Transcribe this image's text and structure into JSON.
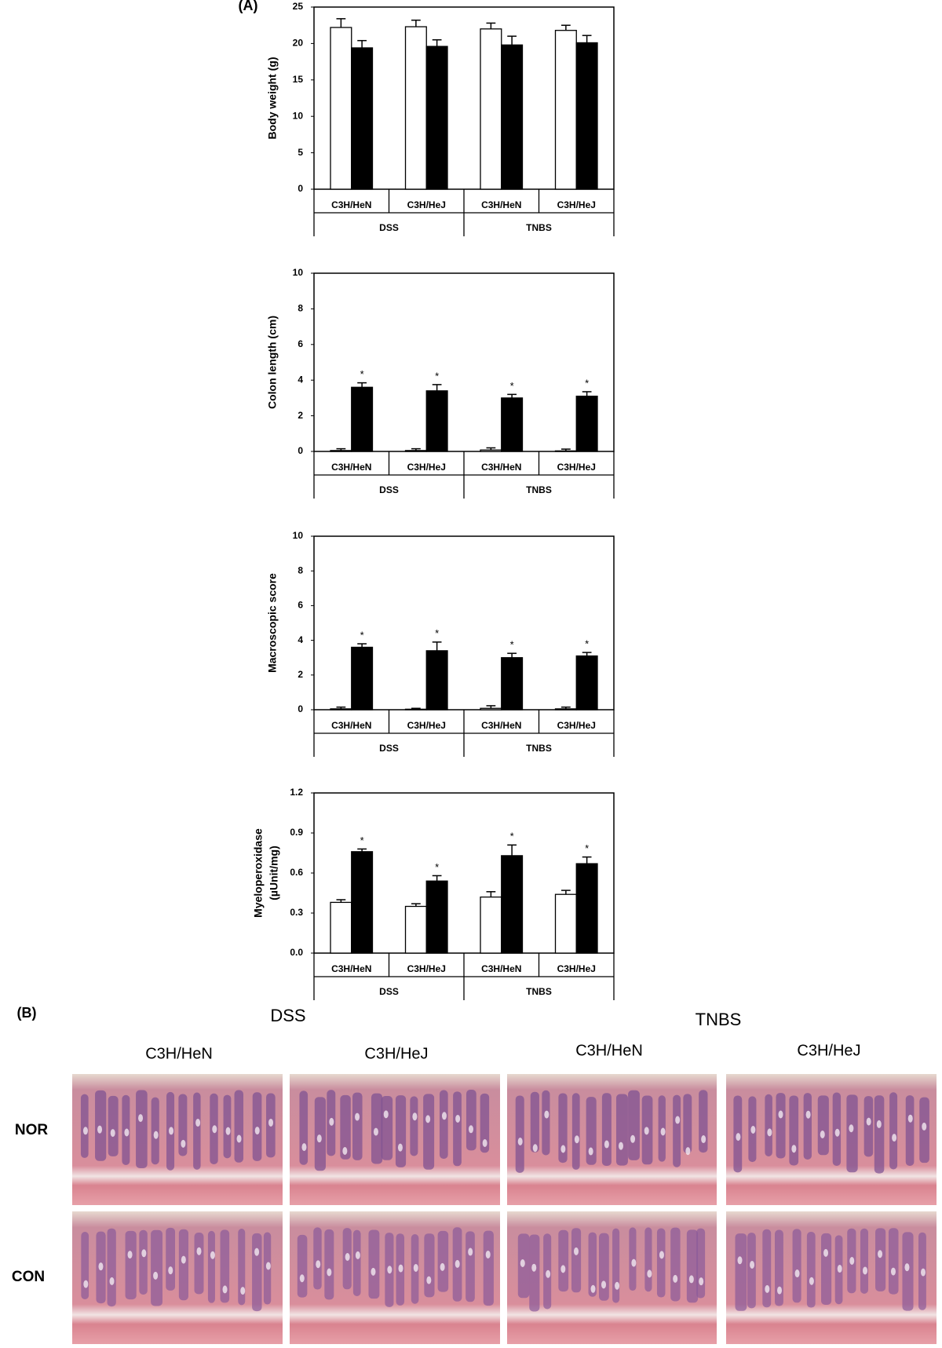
{
  "panel_a": {
    "label": "(A)"
  },
  "chart_data": [
    {
      "type": "bar",
      "y_label": "Body weight (g)",
      "ylim": [
        0,
        25
      ],
      "yticks": [
        0,
        5,
        10,
        15,
        20,
        25
      ],
      "categories": [
        "C3H/HeN",
        "C3H/HeJ",
        "C3H/HeN",
        "C3H/HeJ"
      ],
      "groups": [
        "DSS",
        "TNBS"
      ],
      "series": [
        {
          "color": "#ffffff",
          "values": [
            22.2,
            22.3,
            22.0,
            21.8
          ],
          "errors": [
            1.2,
            0.9,
            0.8,
            0.7
          ]
        },
        {
          "color": "#000000",
          "values": [
            19.4,
            19.6,
            19.8,
            20.1
          ],
          "errors": [
            1.0,
            0.9,
            1.2,
            1.0
          ]
        }
      ]
    },
    {
      "type": "bar",
      "y_label": "Colon length (cm)",
      "ylim": [
        0,
        10
      ],
      "yticks": [
        0,
        2,
        4,
        6,
        8,
        10
      ],
      "categories": [
        "C3H/HeN",
        "C3H/HeJ",
        "C3H/HeN",
        "C3H/HeJ"
      ],
      "groups": [
        "DSS",
        "TNBS"
      ],
      "series": [
        {
          "color": "#ffffff",
          "values": [
            0.05,
            0.05,
            0.08,
            0.03
          ],
          "errors": [
            0.1,
            0.1,
            0.12,
            0.1
          ]
        },
        {
          "color": "#000000",
          "values": [
            3.6,
            3.4,
            3.0,
            3.1
          ],
          "errors": [
            0.25,
            0.35,
            0.2,
            0.25
          ],
          "markers": [
            "*",
            "*",
            "*",
            "*"
          ]
        }
      ]
    },
    {
      "type": "bar",
      "y_label": "Macroscopic score",
      "ylim": [
        0,
        10
      ],
      "yticks": [
        0,
        2,
        4,
        6,
        8,
        10
      ],
      "categories": [
        "C3H/HeN",
        "C3H/HeJ",
        "C3H/HeN",
        "C3H/HeJ"
      ],
      "groups": [
        "DSS",
        "TNBS"
      ],
      "series": [
        {
          "color": "#ffffff",
          "values": [
            0.05,
            0.03,
            0.08,
            0.05
          ],
          "errors": [
            0.1,
            0.05,
            0.15,
            0.1
          ]
        },
        {
          "color": "#000000",
          "values": [
            3.6,
            3.4,
            3.0,
            3.1
          ],
          "errors": [
            0.2,
            0.5,
            0.25,
            0.2
          ],
          "markers": [
            "*",
            "*",
            "*",
            "*"
          ]
        }
      ]
    },
    {
      "type": "bar",
      "y_label": [
        "Myeloperoxidase",
        "(µUnit/mg)"
      ],
      "ylim": [
        0,
        1.2
      ],
      "yticks": [
        {
          "value": 0,
          "label": "0.0"
        },
        0.3,
        0.6,
        0.9,
        1.2
      ],
      "categories": [
        "C3H/HeN",
        "C3H/HeJ",
        "C3H/HeN",
        "C3H/HeJ"
      ],
      "groups": [
        "DSS",
        "TNBS"
      ],
      "series": [
        {
          "color": "#ffffff",
          "values": [
            0.38,
            0.35,
            0.42,
            0.44
          ],
          "errors": [
            0.02,
            0.02,
            0.04,
            0.03
          ]
        },
        {
          "color": "#000000",
          "values": [
            0.76,
            0.54,
            0.73,
            0.67
          ],
          "errors": [
            0.02,
            0.04,
            0.08,
            0.05
          ],
          "markers": [
            "*",
            "*",
            "*",
            "*"
          ]
        }
      ]
    }
  ],
  "panel_b": {
    "label": "(B)",
    "groups": [
      "DSS",
      "TNBS"
    ],
    "columns": [
      "C3H/HeN",
      "C3H/HeJ",
      "C3H/HeN",
      "C3H/HeJ"
    ],
    "rows": [
      "NOR",
      "CON"
    ]
  }
}
